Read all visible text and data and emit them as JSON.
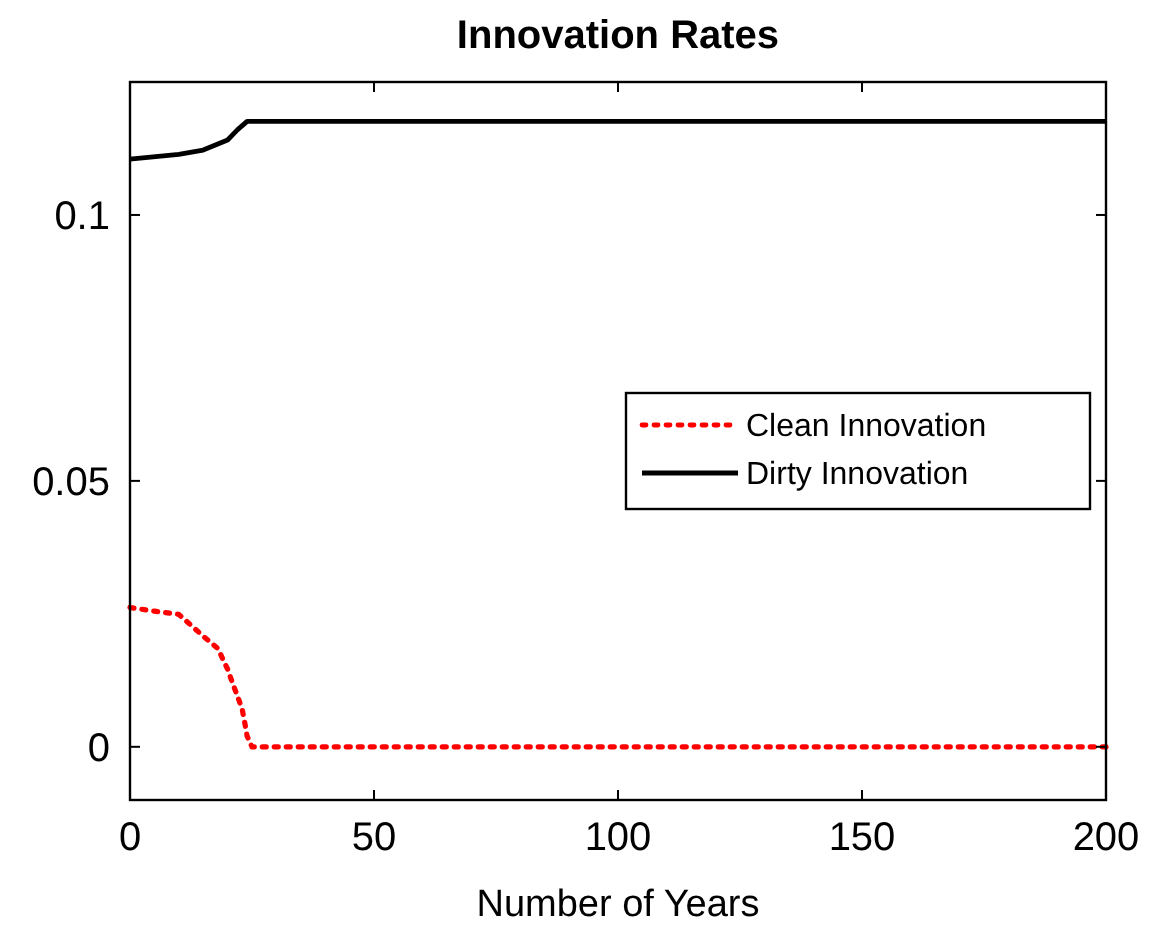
{
  "chart_data": {
    "type": "line",
    "title": "Innovation Rates",
    "xlabel": "Number of Years",
    "xlim": [
      0,
      200
    ],
    "xticks": [
      0,
      50,
      100,
      150,
      200
    ],
    "ylim": [
      -0.01,
      0.125
    ],
    "yticks": [
      0,
      0.05,
      0.1
    ],
    "legend": "right",
    "grid": false,
    "series": [
      {
        "name": "Clean Innovation",
        "color": "#ff0000",
        "line_style": "dotted",
        "x": [
          0,
          5,
          10,
          15,
          18,
          20,
          21,
          22,
          23,
          23.5,
          24,
          25,
          200
        ],
        "values": [
          0.0262,
          0.0255,
          0.0249,
          0.0208,
          0.0185,
          0.0146,
          0.012,
          0.0096,
          0.007,
          0.0046,
          0.002,
          0,
          0
        ]
      },
      {
        "name": "Dirty Innovation",
        "color": "#000000",
        "line_style": "solid",
        "x": [
          0,
          10,
          15,
          20,
          22,
          24,
          200
        ],
        "values": [
          0.1105,
          0.1114,
          0.1122,
          0.1141,
          0.116,
          0.1176,
          0.1176
        ]
      }
    ]
  }
}
